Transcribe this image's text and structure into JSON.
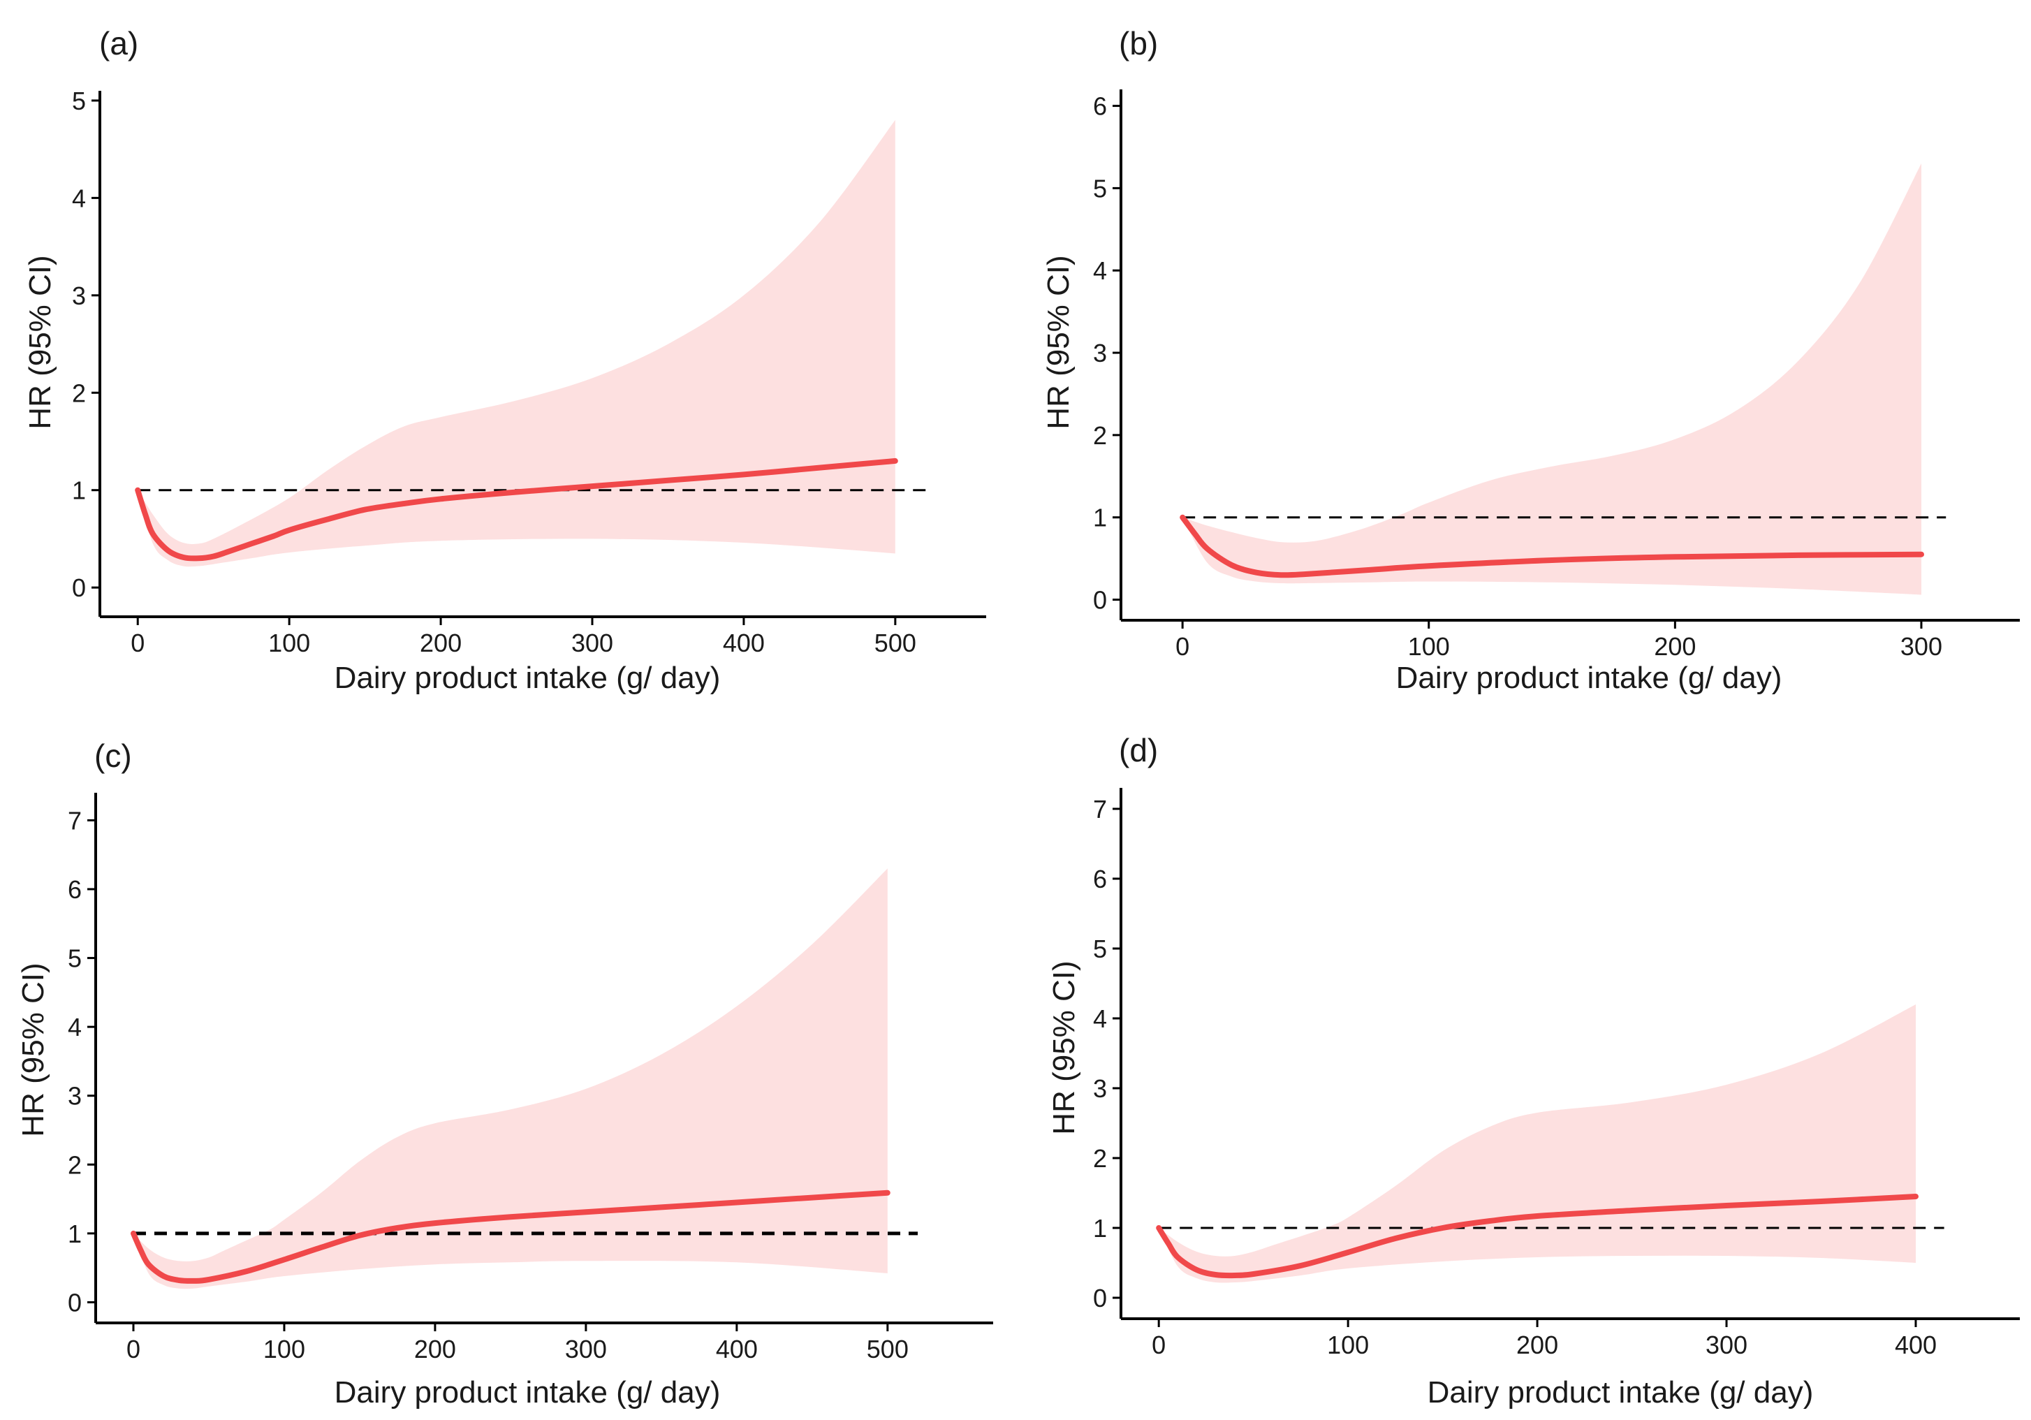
{
  "colors": {
    "line": "#f0484a",
    "band": "#fde0e0",
    "reference": "#000000"
  },
  "chart_data": [
    {
      "type": "line",
      "panel_label": "(a)",
      "xlabel": "Dairy product intake (g/ day)",
      "ylabel": "HR (95% CI)",
      "xticks": [
        0,
        100,
        200,
        300,
        400,
        500
      ],
      "yticks": [
        0,
        1,
        2,
        3,
        4,
        5
      ],
      "xlim": [
        -25,
        560
      ],
      "ylim": [
        -0.3,
        5.1
      ],
      "reference_line": {
        "y": 1,
        "x_range": [
          0,
          520
        ]
      },
      "series": [
        {
          "name": "HR",
          "x": [
            0,
            5,
            10,
            20,
            30,
            40,
            50,
            60,
            75,
            90,
            100,
            125,
            150,
            175,
            200,
            250,
            300,
            350,
            400,
            450,
            500
          ],
          "y": [
            1.0,
            0.75,
            0.55,
            0.38,
            0.31,
            0.3,
            0.32,
            0.37,
            0.45,
            0.53,
            0.59,
            0.7,
            0.8,
            0.86,
            0.91,
            0.98,
            1.04,
            1.1,
            1.16,
            1.23,
            1.3
          ]
        },
        {
          "name": "95% CI lower",
          "x": [
            0,
            10,
            20,
            30,
            40,
            50,
            75,
            100,
            150,
            200,
            300,
            400,
            500
          ],
          "y": [
            1.0,
            0.45,
            0.28,
            0.22,
            0.22,
            0.24,
            0.3,
            0.36,
            0.43,
            0.48,
            0.5,
            0.46,
            0.35
          ]
        },
        {
          "name": "95% CI upper",
          "x": [
            0,
            10,
            20,
            30,
            40,
            50,
            75,
            100,
            125,
            150,
            175,
            200,
            250,
            300,
            350,
            400,
            450,
            500
          ],
          "y": [
            1.0,
            0.75,
            0.55,
            0.46,
            0.45,
            0.5,
            0.7,
            0.92,
            1.2,
            1.45,
            1.65,
            1.75,
            1.92,
            2.15,
            2.5,
            3.0,
            3.75,
            4.8
          ]
        }
      ]
    },
    {
      "type": "line",
      "panel_label": "(b)",
      "xlabel": "Dairy product intake (g/ day)",
      "ylabel": "HR (95% CI)",
      "xticks": [
        0,
        100,
        200,
        300
      ],
      "yticks": [
        0,
        1,
        2,
        3,
        4,
        5,
        6
      ],
      "xlim": [
        -25,
        340
      ],
      "ylim": [
        -0.25,
        6.2
      ],
      "reference_line": {
        "y": 1,
        "x_range": [
          0,
          310
        ]
      },
      "series": [
        {
          "name": "HR",
          "x": [
            0,
            5,
            10,
            20,
            30,
            40,
            50,
            75,
            100,
            150,
            200,
            250,
            300
          ],
          "y": [
            1.0,
            0.8,
            0.62,
            0.42,
            0.33,
            0.3,
            0.31,
            0.36,
            0.41,
            0.48,
            0.52,
            0.54,
            0.55
          ]
        },
        {
          "name": "95% CI lower",
          "x": [
            0,
            10,
            20,
            30,
            40,
            50,
            75,
            100,
            150,
            200,
            250,
            300
          ],
          "y": [
            1.0,
            0.45,
            0.28,
            0.22,
            0.2,
            0.2,
            0.21,
            0.22,
            0.21,
            0.18,
            0.13,
            0.06
          ]
        },
        {
          "name": "95% CI upper",
          "x": [
            0,
            10,
            20,
            30,
            40,
            50,
            60,
            75,
            90,
            100,
            125,
            150,
            175,
            200,
            225,
            250,
            275,
            300
          ],
          "y": [
            1.0,
            0.9,
            0.82,
            0.75,
            0.7,
            0.7,
            0.75,
            0.88,
            1.05,
            1.18,
            1.45,
            1.62,
            1.75,
            1.95,
            2.3,
            2.9,
            3.85,
            5.3
          ]
        }
      ]
    },
    {
      "type": "line",
      "panel_label": "(c)",
      "xlabel": "Dairy product intake (g/ day)",
      "ylabel": "HR (95% CI)",
      "xticks": [
        0,
        100,
        200,
        300,
        400,
        500
      ],
      "yticks": [
        0,
        1,
        2,
        3,
        4,
        5,
        6,
        7
      ],
      "xlim": [
        -25,
        570
      ],
      "ylim": [
        -0.3,
        7.4
      ],
      "reference_line": {
        "y": 1,
        "x_range": [
          0,
          520
        ],
        "thick": true
      },
      "series": [
        {
          "name": "HR",
          "x": [
            0,
            5,
            10,
            20,
            30,
            40,
            50,
            75,
            100,
            125,
            150,
            175,
            200,
            250,
            300,
            350,
            400,
            450,
            500
          ],
          "y": [
            1.0,
            0.75,
            0.55,
            0.38,
            0.32,
            0.31,
            0.33,
            0.45,
            0.62,
            0.8,
            0.97,
            1.08,
            1.15,
            1.24,
            1.31,
            1.38,
            1.45,
            1.52,
            1.59
          ]
        },
        {
          "name": "95% CI lower",
          "x": [
            0,
            10,
            20,
            30,
            40,
            50,
            75,
            100,
            150,
            200,
            250,
            300,
            400,
            500
          ],
          "y": [
            1.0,
            0.42,
            0.25,
            0.2,
            0.2,
            0.23,
            0.3,
            0.38,
            0.48,
            0.55,
            0.58,
            0.6,
            0.58,
            0.42
          ]
        },
        {
          "name": "95% CI upper",
          "x": [
            0,
            10,
            20,
            30,
            40,
            50,
            60,
            75,
            90,
            100,
            125,
            150,
            175,
            200,
            250,
            300,
            350,
            400,
            450,
            500
          ],
          "y": [
            1.0,
            0.78,
            0.65,
            0.6,
            0.6,
            0.65,
            0.75,
            0.9,
            1.05,
            1.2,
            1.6,
            2.05,
            2.4,
            2.6,
            2.8,
            3.1,
            3.6,
            4.3,
            5.2,
            6.3
          ]
        }
      ]
    },
    {
      "type": "line",
      "panel_label": "(d)",
      "xlabel": "Dairy product intake (g/ day)",
      "ylabel": "HR (95% CI)",
      "xticks": [
        0,
        100,
        200,
        300,
        400
      ],
      "yticks": [
        0,
        1,
        2,
        3,
        4,
        5,
        6,
        7
      ],
      "xlim": [
        -20,
        455
      ],
      "ylim": [
        -0.3,
        7.3
      ],
      "reference_line": {
        "y": 1,
        "x_range": [
          0,
          415
        ]
      },
      "series": [
        {
          "name": "HR",
          "x": [
            0,
            5,
            10,
            20,
            30,
            40,
            50,
            75,
            100,
            125,
            150,
            175,
            200,
            250,
            300,
            350,
            400
          ],
          "y": [
            1.0,
            0.78,
            0.58,
            0.4,
            0.33,
            0.32,
            0.34,
            0.46,
            0.65,
            0.85,
            1.0,
            1.1,
            1.17,
            1.25,
            1.32,
            1.38,
            1.45
          ]
        },
        {
          "name": "95% CI lower",
          "x": [
            0,
            10,
            20,
            30,
            40,
            50,
            75,
            100,
            150,
            200,
            250,
            300,
            350,
            400
          ],
          "y": [
            1.0,
            0.45,
            0.28,
            0.22,
            0.22,
            0.24,
            0.32,
            0.42,
            0.52,
            0.58,
            0.6,
            0.6,
            0.57,
            0.5
          ]
        },
        {
          "name": "95% CI upper",
          "x": [
            0,
            10,
            20,
            30,
            40,
            50,
            60,
            75,
            90,
            100,
            125,
            150,
            175,
            200,
            250,
            300,
            350,
            400
          ],
          "y": [
            1.0,
            0.8,
            0.66,
            0.6,
            0.6,
            0.66,
            0.75,
            0.88,
            1.02,
            1.15,
            1.6,
            2.1,
            2.45,
            2.65,
            2.8,
            3.05,
            3.5,
            4.2
          ]
        }
      ]
    }
  ]
}
